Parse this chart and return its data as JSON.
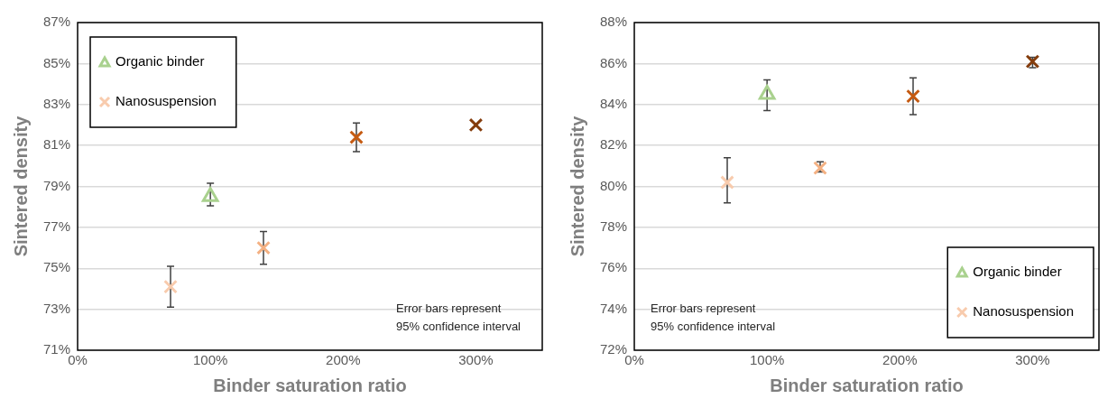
{
  "chart_data": [
    {
      "type": "scatter",
      "xlabel": "Binder saturation ratio",
      "ylabel": "Sintered density",
      "xlim": [
        0,
        350
      ],
      "xticks": [
        {
          "value": 0,
          "label": "0%"
        },
        {
          "value": 100,
          "label": "100%"
        },
        {
          "value": 200,
          "label": "200%"
        },
        {
          "value": 300,
          "label": "300%"
        }
      ],
      "ylim": [
        71,
        87
      ],
      "yticks": [
        {
          "value": 71,
          "label": "71%"
        },
        {
          "value": 73,
          "label": "73%"
        },
        {
          "value": 75,
          "label": "75%"
        },
        {
          "value": 77,
          "label": "77%"
        },
        {
          "value": 79,
          "label": "79%"
        },
        {
          "value": 81,
          "label": "81%"
        },
        {
          "value": 83,
          "label": "83%"
        },
        {
          "value": 85,
          "label": "85%"
        },
        {
          "value": 87,
          "label": "87%"
        }
      ],
      "grid": "y",
      "legend": "top left",
      "annotations": [
        "Error bars represent\n95% confidence interval"
      ],
      "series": [
        {
          "name": "Organic binder",
          "marker": "triangle",
          "color": "#a9d18e",
          "x": [
            100
          ],
          "values": [
            78.5
          ],
          "errors": [
            [
              78.05,
              79.15
            ]
          ]
        },
        {
          "name": "Nanosuspension",
          "marker": "cross",
          "color": "#f8cbad",
          "colors": [
            "#f8cbad",
            "#f4b183",
            "#c55a11",
            "#843c0c"
          ],
          "x": [
            70,
            140,
            210,
            300
          ],
          "values": [
            74.1,
            76.0,
            81.4,
            82.0
          ],
          "errors": [
            [
              73.1,
              75.1
            ],
            [
              75.2,
              76.8
            ],
            [
              80.7,
              82.1
            ],
            null
          ]
        }
      ]
    },
    {
      "type": "scatter",
      "xlabel": "Binder saturation ratio",
      "ylabel": "Sintered density",
      "xlim": [
        0,
        350
      ],
      "xticks": [
        {
          "value": 0,
          "label": "0%"
        },
        {
          "value": 100,
          "label": "100%"
        },
        {
          "value": 200,
          "label": "200%"
        },
        {
          "value": 300,
          "label": "300%"
        }
      ],
      "ylim": [
        72,
        88
      ],
      "yticks": [
        {
          "value": 72,
          "label": "72%"
        },
        {
          "value": 74,
          "label": "74%"
        },
        {
          "value": 76,
          "label": "76%"
        },
        {
          "value": 78,
          "label": "78%"
        },
        {
          "value": 80,
          "label": "80%"
        },
        {
          "value": 82,
          "label": "82%"
        },
        {
          "value": 84,
          "label": "84%"
        },
        {
          "value": 86,
          "label": "86%"
        },
        {
          "value": 88,
          "label": "88%"
        }
      ],
      "grid": "y",
      "legend": "bottom right",
      "annotations": [
        "Error bars represent\n95% confidence interval"
      ],
      "series": [
        {
          "name": "Organic binder",
          "marker": "triangle",
          "color": "#a9d18e",
          "x": [
            100
          ],
          "values": [
            84.5
          ],
          "errors": [
            [
              83.7,
              85.2
            ]
          ]
        },
        {
          "name": "Nanosuspension",
          "marker": "cross",
          "color": "#f8cbad",
          "colors": [
            "#f8cbad",
            "#f4b183",
            "#c55a11",
            "#843c0c"
          ],
          "x": [
            70,
            140,
            210,
            300
          ],
          "values": [
            80.2,
            80.9,
            84.4,
            86.1
          ],
          "errors": [
            [
              79.2,
              81.4
            ],
            [
              80.7,
              81.2
            ],
            [
              83.5,
              85.3
            ],
            [
              85.8,
              86.3
            ]
          ]
        }
      ]
    }
  ]
}
